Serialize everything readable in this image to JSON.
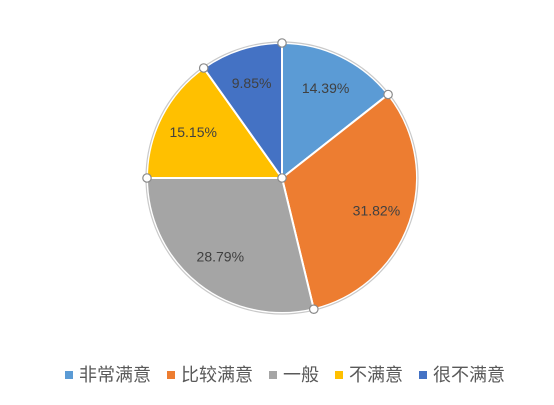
{
  "chart_data": {
    "type": "pie",
    "categories": [
      "非常满意",
      "比较满意",
      "一般",
      "不满意",
      "很不满意"
    ],
    "values": [
      14.39,
      31.82,
      28.79,
      15.15,
      9.85
    ],
    "data_labels": [
      "14.39%",
      "31.82%",
      "28.79%",
      "15.15%",
      "9.85%"
    ],
    "colors": [
      "#5B9BD5",
      "#ED7D31",
      "#A5A5A5",
      "#FFC000",
      "#4472C4"
    ],
    "direction": "clockwise",
    "legend": "bottom"
  }
}
